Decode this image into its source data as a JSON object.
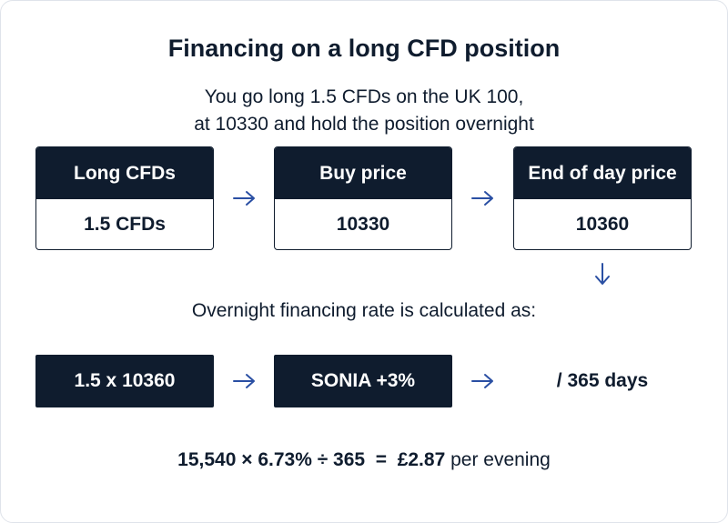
{
  "title": "Financing on a long CFD position",
  "subtitle_line1": "You go long 1.5 CFDs on the UK 100,",
  "subtitle_line2": "at 10330 and hold the position overnight",
  "boxes": [
    {
      "label": "Long CFDs",
      "value": "1.5 CFDs"
    },
    {
      "label": "Buy price",
      "value": "10330"
    },
    {
      "label": "End of day price",
      "value": "10360"
    }
  ],
  "calc_label": "Overnight financing rate is calculated as:",
  "calc_terms": [
    "1.5 x 10360",
    "SONIA +3%",
    "/ 365 days"
  ],
  "result": {
    "equation": "15,540 × 6.73% ÷ 365  =  £2.87",
    "suffix": " per evening"
  },
  "colors": {
    "navy": "#0f1c2e",
    "arrow": "#2a4fa3"
  },
  "icons": {
    "right": "arrow-right-icon",
    "down": "arrow-down-icon"
  }
}
